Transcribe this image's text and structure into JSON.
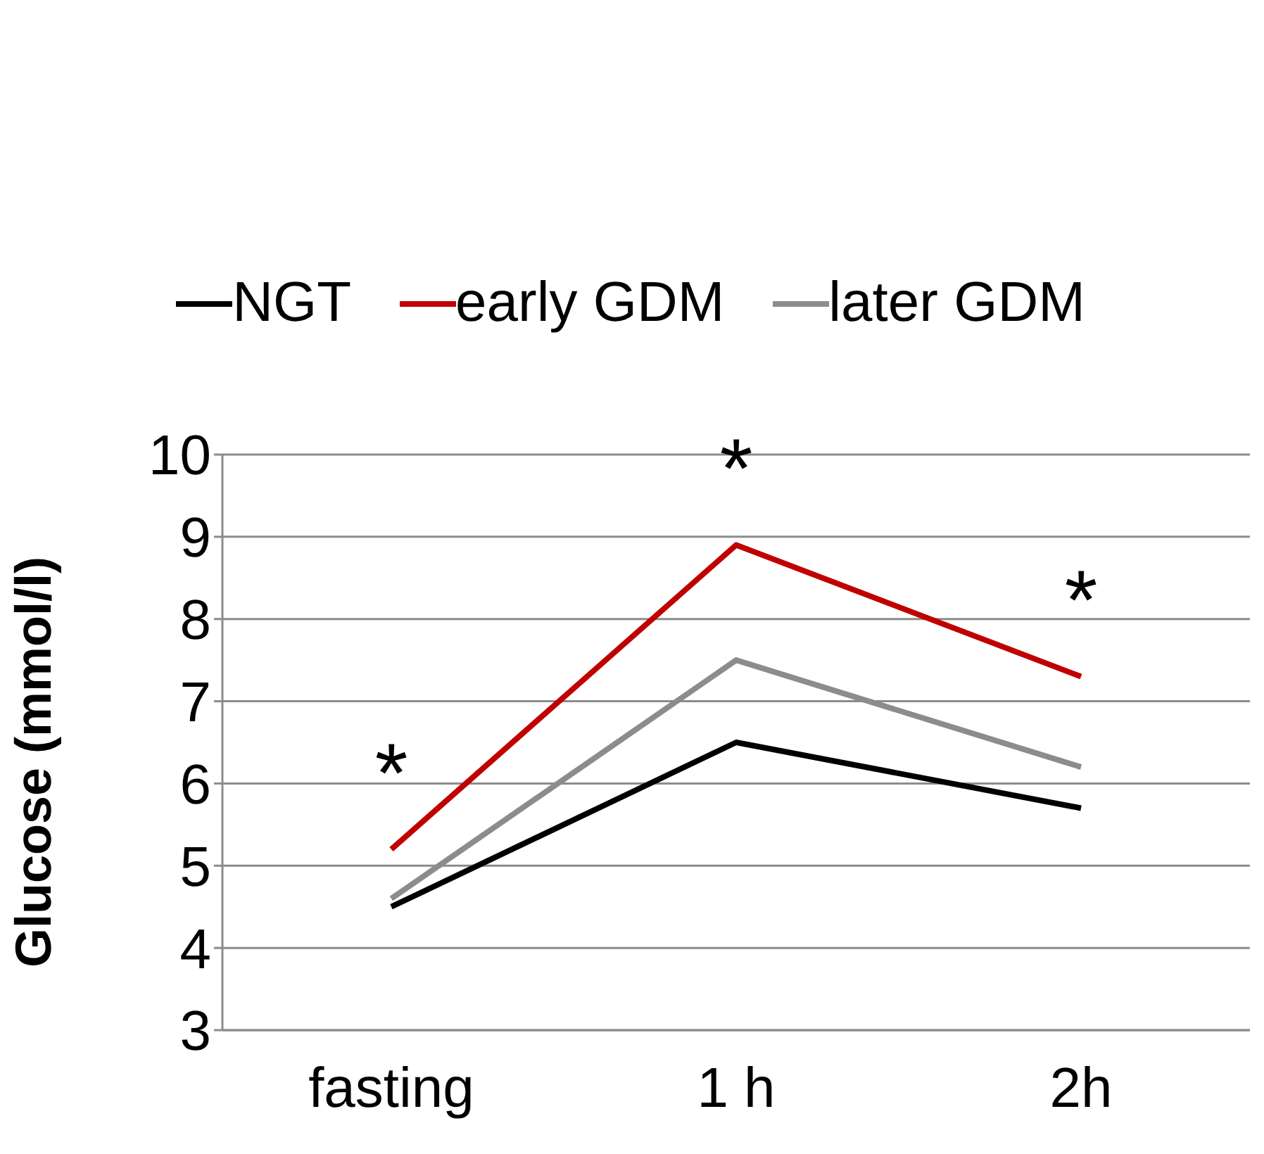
{
  "chart_data": {
    "type": "line",
    "ylabel": "Glucose (mmol/l)",
    "categories": [
      "fasting",
      "1 h",
      "2h"
    ],
    "series": [
      {
        "name": "NGT",
        "color": "#000000",
        "values": [
          4.5,
          6.5,
          5.7
        ]
      },
      {
        "name": "early GDM",
        "color": "#c00000",
        "values": [
          5.2,
          8.9,
          7.3
        ]
      },
      {
        "name": "later GDM",
        "color": "#8c8c8c",
        "values": [
          4.6,
          7.5,
          6.2
        ]
      }
    ],
    "ylim": [
      3,
      10
    ],
    "yticks": [
      3,
      4,
      5,
      6,
      7,
      8,
      9,
      10
    ],
    "grid": "y",
    "legend": "top",
    "marker": "none",
    "line_style": "solid",
    "annotations": [
      "*",
      "*",
      "*"
    ]
  }
}
